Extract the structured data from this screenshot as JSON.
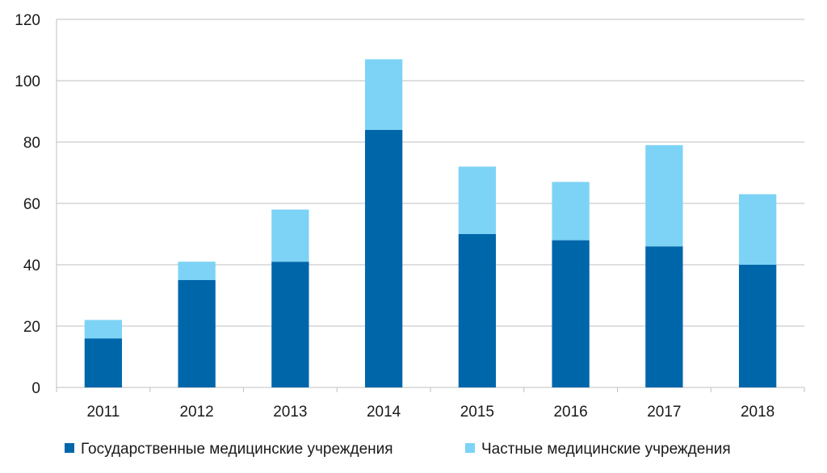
{
  "chart_data": {
    "type": "bar",
    "stacked": true,
    "categories": [
      "2011",
      "2012",
      "2013",
      "2014",
      "2015",
      "2016",
      "2017",
      "2018"
    ],
    "series": [
      {
        "name": "Государственные медицинские учреждения",
        "color": "#0066aa",
        "values": [
          16,
          35,
          41,
          84,
          50,
          48,
          46,
          40
        ]
      },
      {
        "name": "Частные медицинские учреждения",
        "color": "#7dd3f5",
        "values": [
          6,
          6,
          17,
          23,
          22,
          19,
          33,
          23
        ]
      }
    ],
    "ylim": [
      0,
      120
    ],
    "yticks": [
      "0",
      "20",
      "40",
      "60",
      "80",
      "100",
      "120"
    ],
    "grid": true,
    "legend": "bottom"
  }
}
